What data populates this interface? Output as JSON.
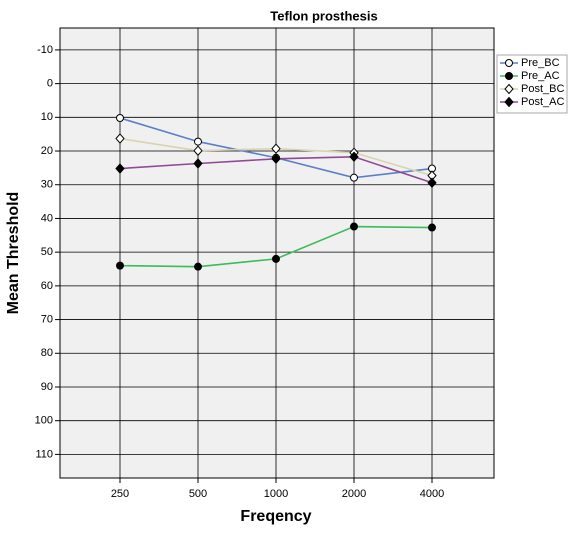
{
  "chart_data": {
    "type": "line",
    "title": "Teflon prosthesis",
    "x_label": "Freqency",
    "y_label": "Mean Threshold",
    "categories": [
      "250",
      "500",
      "1000",
      "2000",
      "4000"
    ],
    "ylim": [
      -16.5,
      117
    ],
    "y_inverted": true,
    "yticks": [
      -10,
      0,
      10,
      20,
      30,
      40,
      50,
      60,
      70,
      80,
      90,
      100,
      110
    ],
    "grid": true,
    "legend": "right",
    "series": [
      {
        "name": "Pre_BC",
        "color": "#5b7fc6",
        "marker": "circle-open",
        "values": [
          10.2,
          17.2,
          22.0,
          27.9,
          25.2
        ]
      },
      {
        "name": "Pre_AC",
        "color": "#3dbb5a",
        "marker": "circle-filled",
        "values": [
          54.0,
          54.3,
          52.0,
          42.4,
          42.7
        ]
      },
      {
        "name": "Post_BC",
        "color": "#d8d4b0",
        "marker": "diamond-open",
        "values": [
          16.3,
          19.9,
          19.3,
          20.5,
          27.3
        ]
      },
      {
        "name": "Post_AC",
        "color": "#8e4a96",
        "marker": "diamond-filled",
        "values": [
          25.2,
          23.7,
          22.3,
          21.7,
          29.4
        ]
      }
    ]
  }
}
